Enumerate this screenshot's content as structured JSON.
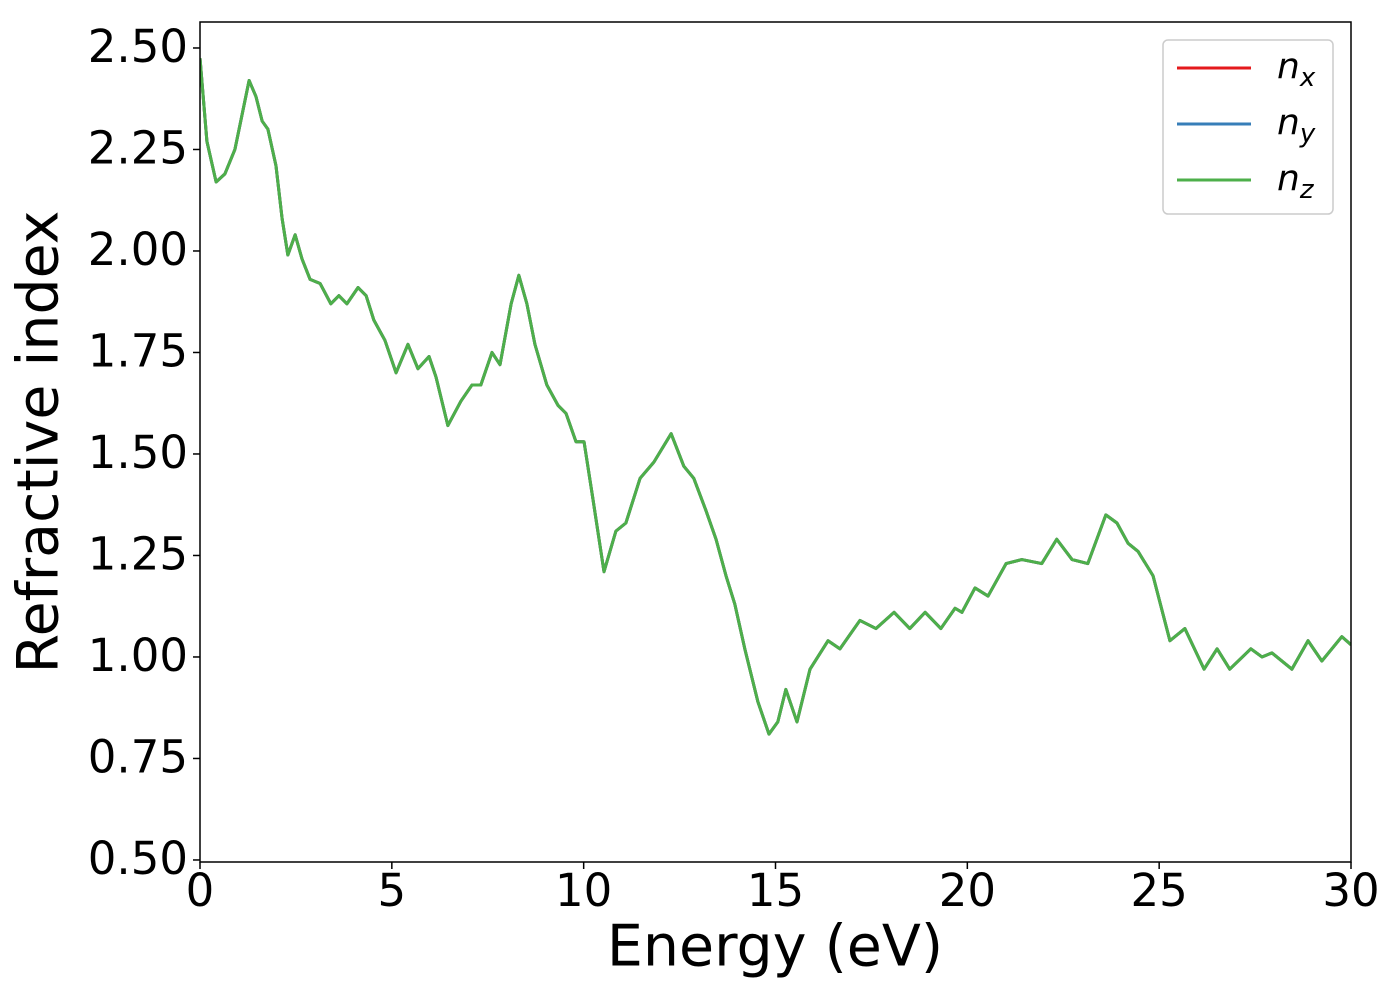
{
  "chart_data": {
    "type": "line",
    "xlabel": "Energy (eV)",
    "ylabel": "Refractive index",
    "x": [
      0,
      0.18,
      0.42,
      0.65,
      0.91,
      1.28,
      1.46,
      1.62,
      1.77,
      1.98,
      2.14,
      2.29,
      2.48,
      2.66,
      2.87,
      3.13,
      3.41,
      3.62,
      3.83,
      4.12,
      4.33,
      4.53,
      4.82,
      5.11,
      5.42,
      5.68,
      5.97,
      6.15,
      6.46,
      6.8,
      7.09,
      7.32,
      7.61,
      7.82,
      8.11,
      8.31,
      8.52,
      8.73,
      9.04,
      9.33,
      9.54,
      9.8,
      10.01,
      10.24,
      10.53,
      10.84,
      11.1,
      11.47,
      11.83,
      12.28,
      12.61,
      12.87,
      13.19,
      13.45,
      13.71,
      13.94,
      14.2,
      14.54,
      14.83,
      15.06,
      15.27,
      15.56,
      15.9,
      16.37,
      16.68,
      17.2,
      17.62,
      18.09,
      18.5,
      18.9,
      19.31,
      19.68,
      19.86,
      20.2,
      20.54,
      21.01,
      21.42,
      21.94,
      22.33,
      22.73,
      23.14,
      23.61,
      23.9,
      24.19,
      24.45,
      24.84,
      25.28,
      25.67,
      26.17,
      26.51,
      26.84,
      27.39,
      27.68,
      27.94,
      28.46,
      28.88,
      29.24,
      29.76,
      30
    ],
    "series": [
      {
        "name": "n",
        "subscript": "x",
        "color": "#e41a1c",
        "values": [
          2.475,
          2.27,
          2.17,
          2.19,
          2.25,
          2.42,
          2.38,
          2.32,
          2.3,
          2.21,
          2.08,
          1.99,
          2.04,
          1.98,
          1.93,
          1.92,
          1.87,
          1.89,
          1.87,
          1.91,
          1.89,
          1.83,
          1.78,
          1.7,
          1.77,
          1.71,
          1.74,
          1.69,
          1.57,
          1.63,
          1.67,
          1.67,
          1.75,
          1.72,
          1.87,
          1.94,
          1.87,
          1.77,
          1.67,
          1.62,
          1.6,
          1.53,
          1.53,
          1.39,
          1.21,
          1.31,
          1.33,
          1.44,
          1.48,
          1.55,
          1.47,
          1.44,
          1.36,
          1.29,
          1.2,
          1.13,
          1.02,
          0.89,
          0.81,
          0.84,
          0.92,
          0.84,
          0.97,
          1.04,
          1.02,
          1.09,
          1.07,
          1.11,
          1.07,
          1.11,
          1.07,
          1.12,
          1.11,
          1.17,
          1.15,
          1.23,
          1.24,
          1.23,
          1.29,
          1.24,
          1.23,
          1.35,
          1.33,
          1.28,
          1.26,
          1.2,
          1.04,
          1.07,
          0.97,
          1.02,
          0.97,
          1.02,
          1.0,
          1.01,
          0.97,
          1.04,
          0.99,
          1.05,
          1.03
        ]
      },
      {
        "name": "n",
        "subscript": "y",
        "color": "#377eb8",
        "values": [
          2.475,
          2.27,
          2.17,
          2.19,
          2.25,
          2.42,
          2.38,
          2.32,
          2.3,
          2.21,
          2.08,
          1.99,
          2.04,
          1.98,
          1.93,
          1.92,
          1.87,
          1.89,
          1.87,
          1.91,
          1.89,
          1.83,
          1.78,
          1.7,
          1.77,
          1.71,
          1.74,
          1.69,
          1.57,
          1.63,
          1.67,
          1.67,
          1.75,
          1.72,
          1.87,
          1.94,
          1.87,
          1.77,
          1.67,
          1.62,
          1.6,
          1.53,
          1.53,
          1.39,
          1.21,
          1.31,
          1.33,
          1.44,
          1.48,
          1.55,
          1.47,
          1.44,
          1.36,
          1.29,
          1.2,
          1.13,
          1.02,
          0.89,
          0.81,
          0.84,
          0.92,
          0.84,
          0.97,
          1.04,
          1.02,
          1.09,
          1.07,
          1.11,
          1.07,
          1.11,
          1.07,
          1.12,
          1.11,
          1.17,
          1.15,
          1.23,
          1.24,
          1.23,
          1.29,
          1.24,
          1.23,
          1.35,
          1.33,
          1.28,
          1.26,
          1.2,
          1.04,
          1.07,
          0.97,
          1.02,
          0.97,
          1.02,
          1.0,
          1.01,
          0.97,
          1.04,
          0.99,
          1.05,
          1.03
        ]
      },
      {
        "name": "n",
        "subscript": "z",
        "color": "#4daf4a",
        "values": [
          2.475,
          2.27,
          2.17,
          2.19,
          2.25,
          2.42,
          2.38,
          2.32,
          2.3,
          2.21,
          2.08,
          1.99,
          2.04,
          1.98,
          1.93,
          1.92,
          1.87,
          1.89,
          1.87,
          1.91,
          1.89,
          1.83,
          1.78,
          1.7,
          1.77,
          1.71,
          1.74,
          1.69,
          1.57,
          1.63,
          1.67,
          1.67,
          1.75,
          1.72,
          1.87,
          1.94,
          1.87,
          1.77,
          1.67,
          1.62,
          1.6,
          1.53,
          1.53,
          1.39,
          1.21,
          1.31,
          1.33,
          1.44,
          1.48,
          1.55,
          1.47,
          1.44,
          1.36,
          1.29,
          1.2,
          1.13,
          1.02,
          0.89,
          0.81,
          0.84,
          0.92,
          0.84,
          0.97,
          1.04,
          1.02,
          1.09,
          1.07,
          1.11,
          1.07,
          1.11,
          1.07,
          1.12,
          1.11,
          1.17,
          1.15,
          1.23,
          1.24,
          1.23,
          1.29,
          1.24,
          1.23,
          1.35,
          1.33,
          1.28,
          1.26,
          1.2,
          1.04,
          1.07,
          0.97,
          1.02,
          0.97,
          1.02,
          1.0,
          1.01,
          0.97,
          1.04,
          0.99,
          1.05,
          1.03
        ]
      }
    ],
    "xlim": [
      0,
      30
    ],
    "xticks": [
      0,
      5,
      10,
      15,
      20,
      25,
      30
    ],
    "ylim": [
      0.495,
      2.564
    ],
    "yticks": [
      {
        "value": 0.5,
        "label": "0.50"
      },
      {
        "value": 0.75,
        "label": "0.75"
      },
      {
        "value": 1,
        "label": "1.00"
      },
      {
        "value": 1.25,
        "label": "1.25"
      },
      {
        "value": 1.5,
        "label": "1.50"
      },
      {
        "value": 1.75,
        "label": "1.75"
      },
      {
        "value": 2,
        "label": "2.00"
      },
      {
        "value": 2.25,
        "label": "2.25"
      },
      {
        "value": 2.5,
        "label": "2.50"
      }
    ],
    "grid": false,
    "legend": "upper right"
  }
}
